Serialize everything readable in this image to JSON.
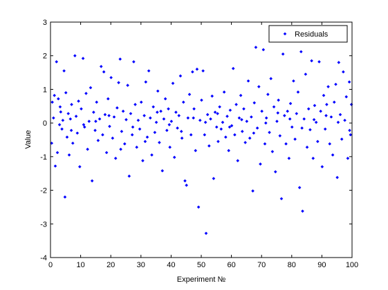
{
  "chart_data": {
    "type": "scatter",
    "xlabel": "Experiment №",
    "ylabel": "Value",
    "xlim": [
      0,
      100
    ],
    "ylim": [
      -4,
      3
    ],
    "xticks": [
      0,
      10,
      20,
      30,
      40,
      50,
      60,
      70,
      80,
      90,
      100
    ],
    "yticks": [
      -4,
      -3,
      -2,
      -1,
      0,
      1,
      2,
      3
    ],
    "grid": false,
    "legend_position": "top-right",
    "series": [
      {
        "name": "Residuals",
        "color": "#0000ff",
        "marker": "diamond",
        "points": [
          [
            0.6,
            0.62
          ],
          [
            1.0,
            0.15
          ],
          [
            1.3,
            0.82
          ],
          [
            1.6,
            -1.28
          ],
          [
            2.0,
            1.82
          ],
          [
            2.3,
            -0.88
          ],
          [
            2.6,
            0.72
          ],
          [
            3.0,
            -0.05
          ],
          [
            3.4,
            0.33
          ],
          [
            3.8,
            -0.18
          ],
          [
            4.1,
            0.08
          ],
          [
            4.5,
            1.55
          ],
          [
            4.8,
            -2.2
          ],
          [
            5.1,
            0.9
          ],
          [
            5.5,
            -0.42
          ],
          [
            5.9,
            0.28
          ],
          [
            6.2,
            -0.95
          ],
          [
            6.6,
            0.12
          ],
          [
            7.0,
            0.55
          ],
          [
            7.4,
            -0.6
          ],
          [
            8.1,
            2.0
          ],
          [
            8.5,
            0.2
          ],
          [
            8.9,
            -0.3
          ],
          [
            9.3,
            0.65
          ],
          [
            9.7,
            -1.3
          ],
          [
            10.2,
            0.42
          ],
          [
            10.8,
            1.92
          ],
          [
            11.3,
            -0.12
          ],
          [
            11.8,
            0.88
          ],
          [
            12.3,
            -0.78
          ],
          [
            12.8,
            0.05
          ],
          [
            13.3,
            1.05
          ],
          [
            13.8,
            -1.72
          ],
          [
            14.3,
            0.32
          ],
          [
            14.8,
            -0.22
          ],
          [
            15.3,
            0.62
          ],
          [
            15.8,
            -0.52
          ],
          [
            16.3,
            0.12
          ],
          [
            16.8,
            1.68
          ],
          [
            17.3,
            -0.35
          ],
          [
            17.7,
            1.52
          ],
          [
            18.1,
            0.25
          ],
          [
            18.6,
            -0.88
          ],
          [
            19.1,
            0.72
          ],
          [
            19.6,
            -0.1
          ],
          [
            20.1,
            1.35
          ],
          [
            20.6,
            -0.45
          ],
          [
            21.1,
            0.18
          ],
          [
            21.6,
            -1.05
          ],
          [
            22.1,
            0.45
          ],
          [
            22.6,
            1.2
          ],
          [
            23.1,
            1.9
          ],
          [
            23.6,
            -0.25
          ],
          [
            24.1,
            0.35
          ],
          [
            24.6,
            -0.62
          ],
          [
            25.1,
            0.1
          ],
          [
            25.6,
            1.12
          ],
          [
            26.1,
            -1.58
          ],
          [
            26.6,
            0.28
          ],
          [
            27.1,
            -0.35
          ],
          [
            27.6,
            1.82
          ],
          [
            28.1,
            0.55
          ],
          [
            28.6,
            -0.72
          ],
          [
            29.1,
            0.08
          ],
          [
            29.6,
            -0.18
          ],
          [
            30.1,
            0.62
          ],
          [
            30.6,
            -1.12
          ],
          [
            31.1,
            0.22
          ],
          [
            31.6,
            1.22
          ],
          [
            32.1,
            -0.42
          ],
          [
            32.6,
            1.55
          ],
          [
            33.1,
            0.15
          ],
          [
            33.6,
            -0.95
          ],
          [
            34.1,
            0.48
          ],
          [
            34.6,
            -0.28
          ],
          [
            35.1,
            0.02
          ],
          [
            35.6,
            0.95
          ],
          [
            36.1,
            -0.58
          ],
          [
            36.6,
            0.35
          ],
          [
            37.1,
            -1.42
          ],
          [
            37.6,
            0.12
          ],
          [
            38.1,
            0.72
          ],
          [
            38.6,
            -0.22
          ],
          [
            39.1,
            0.42
          ],
          [
            39.6,
            -0.72
          ],
          [
            40.1,
            0.05
          ],
          [
            40.6,
            1.18
          ],
          [
            41.1,
            -1.02
          ],
          [
            41.6,
            0.32
          ],
          [
            42.1,
            -0.15
          ],
          [
            42.6,
            0.22
          ],
          [
            43.1,
            1.4
          ],
          [
            43.6,
            -0.45
          ],
          [
            44.1,
            0.62
          ],
          [
            44.6,
            -1.72
          ],
          [
            45.1,
            -1.85
          ],
          [
            45.6,
            0.15
          ],
          [
            46.1,
            0.85
          ],
          [
            46.6,
            -0.35
          ],
          [
            47.1,
            1.52
          ],
          [
            47.6,
            0.42
          ],
          [
            48.1,
            -0.82
          ],
          [
            48.6,
            1.6
          ],
          [
            49.1,
            -2.5
          ],
          [
            49.6,
            0.08
          ],
          [
            50.1,
            0.68
          ],
          [
            50.6,
            1.55
          ],
          [
            51.1,
            -0.35
          ],
          [
            51.6,
            -3.28
          ],
          [
            52.1,
            0.25
          ],
          [
            52.6,
            -0.68
          ],
          [
            53.1,
            0.12
          ],
          [
            53.6,
            0.8
          ],
          [
            54.1,
            -1.65
          ],
          [
            54.6,
            0.32
          ],
          [
            55.1,
            -0.12
          ],
          [
            55.6,
            -0.55
          ],
          [
            56.1,
            0.48
          ],
          [
            56.6,
            -0.18
          ],
          [
            57.1,
            0.02
          ],
          [
            57.6,
            0.92
          ],
          [
            58.1,
            -0.42
          ],
          [
            58.6,
            0.2
          ],
          [
            59.1,
            -0.82
          ],
          [
            59.6,
            0.38
          ],
          [
            60.1,
            -0.08
          ],
          [
            60.6,
            1.62
          ],
          [
            61.1,
            -0.35
          ],
          [
            61.6,
            0.55
          ],
          [
            62.1,
            -1.12
          ],
          [
            62.6,
            0.15
          ],
          [
            63.1,
            0.82
          ],
          [
            63.6,
            -0.25
          ],
          [
            64.1,
            0.42
          ],
          [
            64.6,
            -0.58
          ],
          [
            65.1,
            0.05
          ],
          [
            65.6,
            1.25
          ],
          [
            66.1,
            -0.45
          ],
          [
            66.6,
            0.18
          ],
          [
            67.1,
            -2.02
          ],
          [
            67.6,
            0.6
          ],
          [
            68.1,
            2.25
          ],
          [
            68.6,
            -0.15
          ],
          [
            69.1,
            1.08
          ],
          [
            69.6,
            -1.22
          ],
          [
            70.1,
            0.35
          ],
          [
            70.6,
            2.18
          ],
          [
            71.1,
            -0.62
          ],
          [
            71.6,
            0.15
          ],
          [
            72.1,
            0.85
          ],
          [
            72.6,
            -0.28
          ],
          [
            73.1,
            1.32
          ],
          [
            73.6,
            -0.85
          ],
          [
            74.1,
            0.48
          ],
          [
            74.6,
            -1.45
          ],
          [
            75.1,
            0.05
          ],
          [
            75.6,
            0.68
          ],
          [
            76.1,
            -0.38
          ],
          [
            76.6,
            -2.25
          ],
          [
            77.1,
            2.05
          ],
          [
            77.6,
            0.22
          ],
          [
            78.1,
            -0.62
          ],
          [
            78.6,
            0.35
          ],
          [
            79.1,
            -1.05
          ],
          [
            79.6,
            0.58
          ],
          [
            80.1,
            -0.12
          ],
          [
            80.6,
            1.25
          ],
          [
            81.1,
            -0.48
          ],
          [
            81.6,
            0.28
          ],
          [
            82.1,
            0.92
          ],
          [
            82.6,
            -1.92
          ],
          [
            83.1,
            2.12
          ],
          [
            83.6,
            -2.62
          ],
          [
            84.1,
            0.12
          ],
          [
            84.6,
            1.45
          ],
          [
            85.1,
            -0.72
          ],
          [
            85.6,
            0.42
          ],
          [
            86.1,
            -0.2
          ],
          [
            86.6,
            1.85
          ],
          [
            87.1,
            -1.05
          ],
          [
            87.6,
            0.52
          ],
          [
            88.1,
            0.02
          ],
          [
            88.6,
            -0.55
          ],
          [
            89.1,
            1.82
          ],
          [
            89.6,
            0.35
          ],
          [
            90.1,
            -1.3
          ],
          [
            90.6,
            0.82
          ],
          [
            91.1,
            -0.18
          ],
          [
            91.6,
            0.55
          ],
          [
            92.1,
            1.08
          ],
          [
            92.6,
            -0.62
          ],
          [
            93.1,
            0.18
          ],
          [
            93.6,
            -0.95
          ],
          [
            94.1,
            0.62
          ],
          [
            94.6,
            1.15
          ],
          [
            95.1,
            -1.62
          ],
          [
            95.6,
            1.8
          ],
          [
            96.1,
            0.25
          ],
          [
            96.6,
            -0.48
          ],
          [
            97.1,
            1.52
          ],
          [
            97.6,
            0.08
          ],
          [
            98.1,
            0.78
          ],
          [
            98.6,
            -1.05
          ],
          [
            99.1,
            1.22
          ],
          [
            99.5,
            -0.35
          ],
          [
            99.8,
            0.55
          ],
          [
            0.4,
            -0.6
          ],
          [
            3.2,
            0.48
          ],
          [
            6.9,
            -0.22
          ],
          [
            11.0,
            -0.05
          ],
          [
            15.0,
            0.05
          ],
          [
            19.4,
            0.22
          ],
          [
            23.3,
            -0.78
          ],
          [
            27.3,
            -0.12
          ],
          [
            31.4,
            -0.55
          ],
          [
            35.4,
            0.32
          ],
          [
            39.4,
            -0.05
          ],
          [
            43.4,
            -0.25
          ],
          [
            47.4,
            0.15
          ],
          [
            51.4,
            0.02
          ],
          [
            55.4,
            0.28
          ],
          [
            59.4,
            -0.12
          ],
          [
            63.4,
            0.1
          ],
          [
            67.4,
            -0.3
          ],
          [
            71.4,
            0.0
          ],
          [
            75.4,
            0.3
          ],
          [
            79.4,
            0.12
          ],
          [
            83.4,
            -0.15
          ],
          [
            87.4,
            0.1
          ],
          [
            91.4,
            0.22
          ],
          [
            95.4,
            0.02
          ],
          [
            99.2,
            -0.22
          ]
        ]
      }
    ]
  }
}
